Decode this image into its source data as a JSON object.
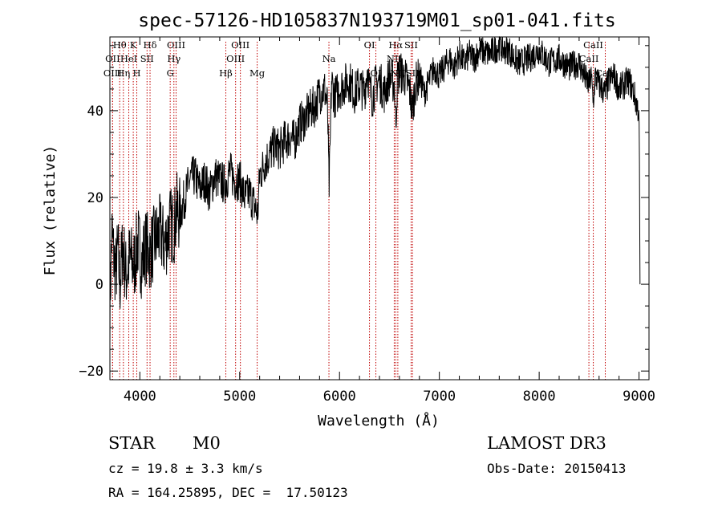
{
  "chart_data": {
    "type": "line",
    "title": "spec-57126-HD105837N193719M01_sp01-041.fits",
    "xlabel": "Wavelength (Å)",
    "ylabel": "Flux (relative)",
    "xlim": [
      3700,
      9100
    ],
    "ylim": [
      -22,
      57
    ],
    "xticks": [
      4000,
      5000,
      6000,
      7000,
      8000,
      9000
    ],
    "yticks": [
      -20,
      0,
      20,
      40
    ],
    "grid": false,
    "legend": "none",
    "series": [
      {
        "color": "#000000",
        "x": [
          3700,
          3720,
          3740,
          3760,
          3780,
          3800,
          3830,
          3860,
          3900,
          3940,
          3980,
          4020,
          4060,
          4100,
          4150,
          4200,
          4250,
          4300,
          4340,
          4370,
          4400,
          4450,
          4500,
          4550,
          4600,
          4650,
          4700,
          4750,
          4800,
          4850,
          4900,
          4950,
          5000,
          5050,
          5100,
          5150,
          5180,
          5200,
          5250,
          5300,
          5350,
          5400,
          5450,
          5500,
          5550,
          5600,
          5650,
          5700,
          5750,
          5800,
          5850,
          5880,
          5895,
          5905,
          5920,
          5950,
          6000,
          6050,
          6100,
          6150,
          6200,
          6250,
          6280,
          6300,
          6330,
          6360,
          6400,
          6450,
          6500,
          6550,
          6563,
          6580,
          6600,
          6650,
          6700,
          6730,
          6760,
          6800,
          6850,
          6900,
          6950,
          7000,
          7050,
          7100,
          7150,
          7200,
          7250,
          7300,
          7350,
          7400,
          7500,
          7600,
          7650,
          7700,
          7750,
          7800,
          7900,
          8000,
          8100,
          8200,
          8300,
          8400,
          8450,
          8498,
          8520,
          8542,
          8560,
          8600,
          8662,
          8700,
          8750,
          8800,
          8850,
          8900,
          8950,
          8980,
          9000,
          9005,
          9010
        ],
        "y": [
          -5,
          12,
          6,
          3,
          8,
          0,
          9,
          2,
          6,
          4,
          10,
          5,
          9,
          7,
          10,
          12,
          9,
          14,
          13,
          17,
          16,
          20,
          24,
          25,
          22,
          24,
          21,
          25,
          24,
          23,
          26,
          24,
          24,
          20,
          21,
          18,
          16,
          25,
          28,
          30,
          32,
          31,
          33,
          34,
          33,
          37,
          38,
          40,
          41,
          44,
          45,
          41,
          22,
          30,
          47,
          43,
          45,
          46,
          47,
          44,
          46,
          44,
          50,
          45,
          43,
          46,
          47,
          44,
          48,
          46,
          37,
          47,
          49,
          48,
          45,
          40,
          46,
          48,
          44,
          47,
          50,
          48,
          50,
          52,
          50,
          53,
          51,
          53,
          52,
          54,
          53,
          55,
          54,
          54,
          52,
          51,
          52,
          54,
          51,
          52,
          50,
          51,
          48,
          46,
          48,
          42,
          48,
          46,
          44,
          47,
          48,
          45,
          46,
          47,
          44,
          41,
          40,
          25,
          0
        ]
      }
    ],
    "spectral_lines": [
      {
        "name": "Hθ",
        "x": 3798,
        "row": 1
      },
      {
        "name": "OII",
        "x": 3727,
        "row": 2
      },
      {
        "name": "OIII",
        "x": 3727,
        "row": 3
      },
      {
        "name": "K",
        "x": 3934,
        "row": 1
      },
      {
        "name": "HeI",
        "x": 3889,
        "row": 2
      },
      {
        "name": "Hη",
        "x": 3835,
        "row": 3
      },
      {
        "name": "Hδ",
        "x": 4102,
        "row": 1
      },
      {
        "name": "SII",
        "x": 4072,
        "row": 2
      },
      {
        "name": "H",
        "x": 3969,
        "row": 3
      },
      {
        "name": "OIII",
        "x": 4363,
        "row": 1
      },
      {
        "name": "Hγ",
        "x": 4341,
        "row": 2
      },
      {
        "name": "G",
        "x": 4304,
        "row": 3
      },
      {
        "name": "OIII",
        "x": 5007,
        "row": 1
      },
      {
        "name": "OIII",
        "x": 4959,
        "row": 2
      },
      {
        "name": "Hβ",
        "x": 4861,
        "row": 3
      },
      {
        "name": "Mg",
        "x": 5175,
        "row": 3
      },
      {
        "name": "Na",
        "x": 5894,
        "row": 2
      },
      {
        "name": "OI",
        "x": 6300,
        "row": 1
      },
      {
        "name": "OI",
        "x": 6364,
        "row": 3
      },
      {
        "name": "Hα",
        "x": 6563,
        "row": 1
      },
      {
        "name": "NII",
        "x": 6548,
        "row": 2
      },
      {
        "name": "NII",
        "x": 6584,
        "row": 3
      },
      {
        "name": "SII",
        "x": 6717,
        "row": 1
      },
      {
        "name": "SII",
        "x": 6731,
        "row": 3
      },
      {
        "name": "CaII",
        "x": 8542,
        "row": 1
      },
      {
        "name": "CaII",
        "x": 8498,
        "row": 2
      },
      {
        "name": "CaII",
        "x": 8662,
        "row": 3
      }
    ]
  },
  "info": {
    "class_label": "STAR",
    "subclass": "M0",
    "survey": "LAMOST DR3",
    "cz": "cz = 19.8 ± 3.3 km/s",
    "obs_date": "Obs-Date: 20150413",
    "radec": "RA = 164.25895, DEC =  17.50123"
  }
}
